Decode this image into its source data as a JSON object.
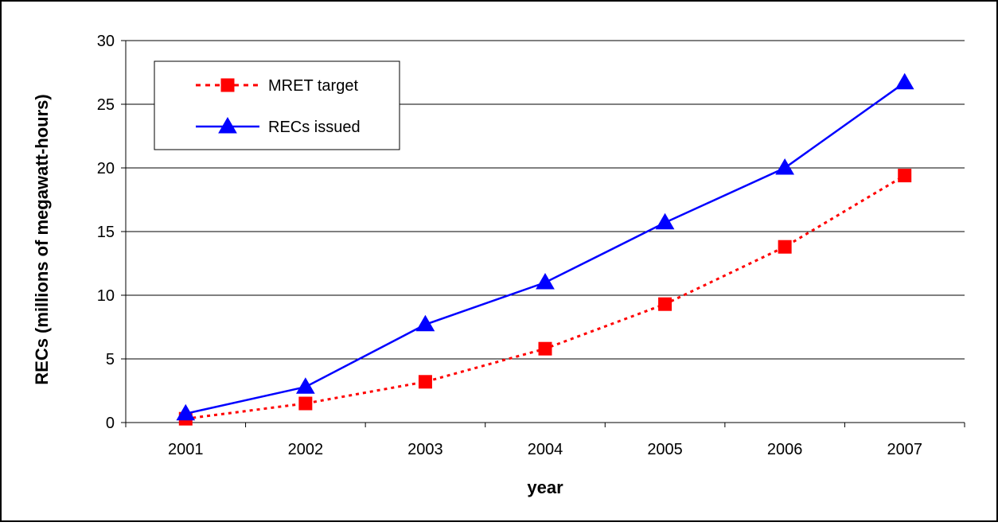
{
  "chart_data": {
    "type": "line",
    "title": "",
    "xlabel": "year",
    "ylabel": "RECs (millions of megawatt-hours)",
    "categories": [
      "2001",
      "2002",
      "2003",
      "2004",
      "2005",
      "2006",
      "2007"
    ],
    "ylim": [
      0,
      30
    ],
    "yticks": [
      0,
      5,
      10,
      15,
      20,
      25,
      30
    ],
    "grid": true,
    "legend_position": "top-left",
    "series": [
      {
        "name": "MRET target",
        "values": [
          0.3,
          1.5,
          3.2,
          5.8,
          9.3,
          13.8,
          19.4
        ],
        "color": "#FF0000",
        "line_style": "dotted",
        "marker": "square"
      },
      {
        "name": "RECs issued",
        "values": [
          0.7,
          2.8,
          7.7,
          11.0,
          15.7,
          20.0,
          26.7
        ],
        "color": "#0000FF",
        "line_style": "solid",
        "marker": "triangle"
      }
    ]
  }
}
